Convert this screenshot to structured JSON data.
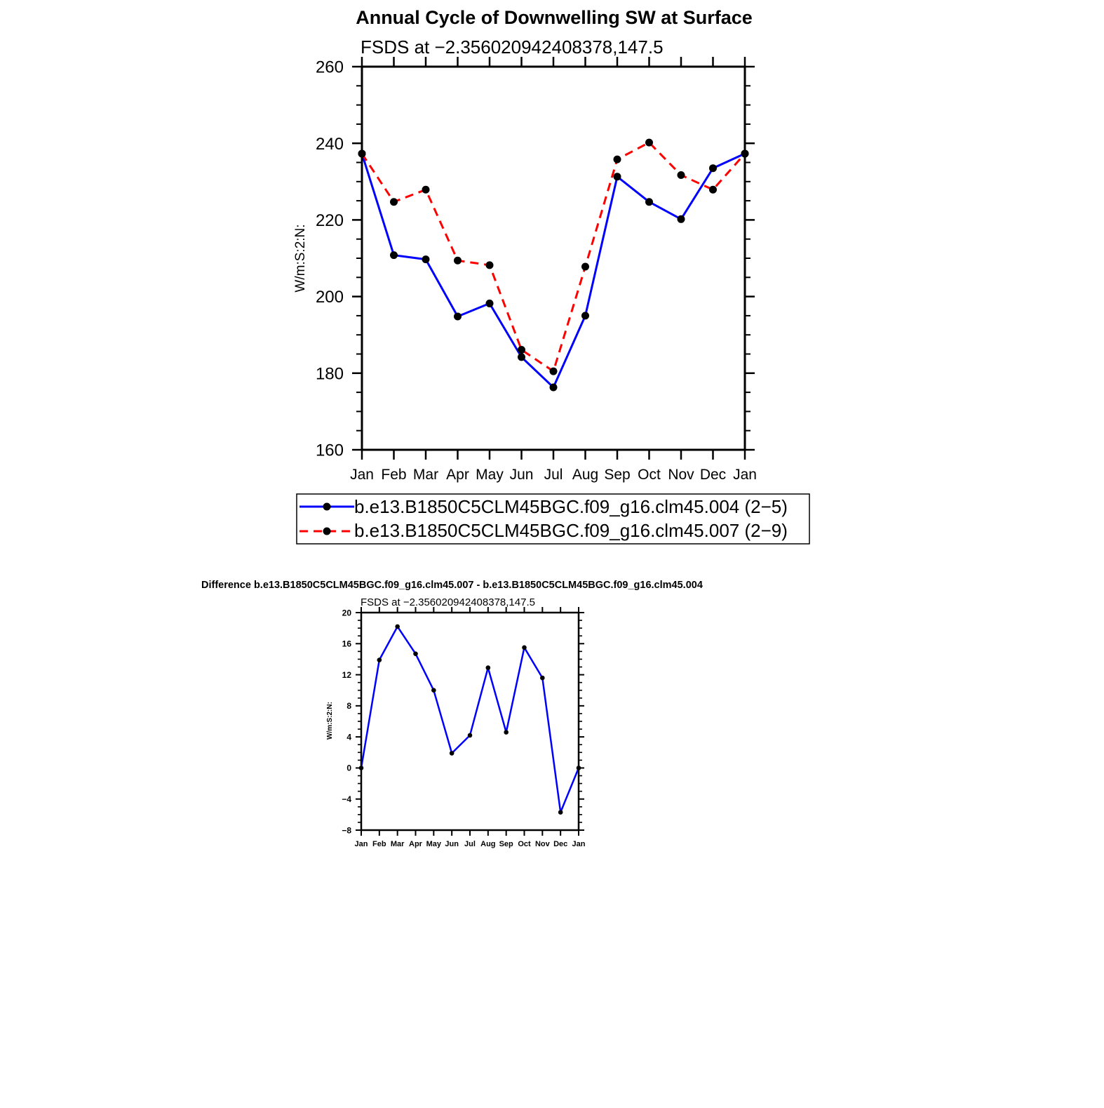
{
  "chart_data": [
    {
      "type": "line",
      "title": "Annual Cycle of Downwelling SW at Surface",
      "subtitle": "FSDS at −2.356020942408378,147.5",
      "xlabel": "",
      "ylabel": "W/m:S:2:N:",
      "categories": [
        "Jan",
        "Feb",
        "Mar",
        "Apr",
        "May",
        "Jun",
        "Jul",
        "Aug",
        "Sep",
        "Oct",
        "Nov",
        "Dec",
        "Jan"
      ],
      "ylim": [
        160,
        260
      ],
      "yticks": [
        160,
        180,
        200,
        220,
        240,
        260
      ],
      "y_minor_step": 5,
      "series": [
        {
          "name": "b.e13.B1850C5CLM45BGC.f09_g16.clm45.004 (2−5)",
          "color": "#0000ff",
          "dash": "solid",
          "values": [
            237.3,
            210.8,
            209.7,
            194.8,
            198.2,
            184.2,
            176.3,
            195.0,
            231.3,
            224.7,
            220.2,
            233.5,
            237.3
          ]
        },
        {
          "name": "b.e13.B1850C5CLM45BGC.f09_g16.clm45.007 (2−9)",
          "color": "#ff0000",
          "dash": "dashed",
          "values": [
            237.3,
            224.7,
            227.9,
            209.4,
            208.2,
            186.1,
            180.5,
            207.8,
            235.8,
            240.2,
            231.7,
            227.9,
            237.3
          ]
        }
      ],
      "legend": "bottom"
    },
    {
      "type": "line",
      "title": "Difference b.e13.B1850C5CLM45BGC.f09_g16.clm45.007 - b.e13.B1850C5CLM45BGC.f09_g16.clm45.004",
      "subtitle": "FSDS at −2.356020942408378,147.5",
      "xlabel": "",
      "ylabel": "W/m:S:2:N:",
      "categories": [
        "Jan",
        "Feb",
        "Mar",
        "Apr",
        "May",
        "Jun",
        "Jul",
        "Aug",
        "Sep",
        "Oct",
        "Nov",
        "Dec",
        "Jan"
      ],
      "ylim": [
        -8,
        20
      ],
      "yticks": [
        -8,
        -4,
        0,
        4,
        8,
        12,
        16,
        20
      ],
      "y_minor_step": 1,
      "series": [
        {
          "name": "difference",
          "color": "#0000ff",
          "dash": "solid",
          "values": [
            0,
            13.9,
            18.2,
            14.7,
            10.0,
            1.9,
            4.2,
            12.9,
            4.6,
            15.5,
            11.6,
            -5.7,
            0
          ]
        }
      ]
    }
  ]
}
